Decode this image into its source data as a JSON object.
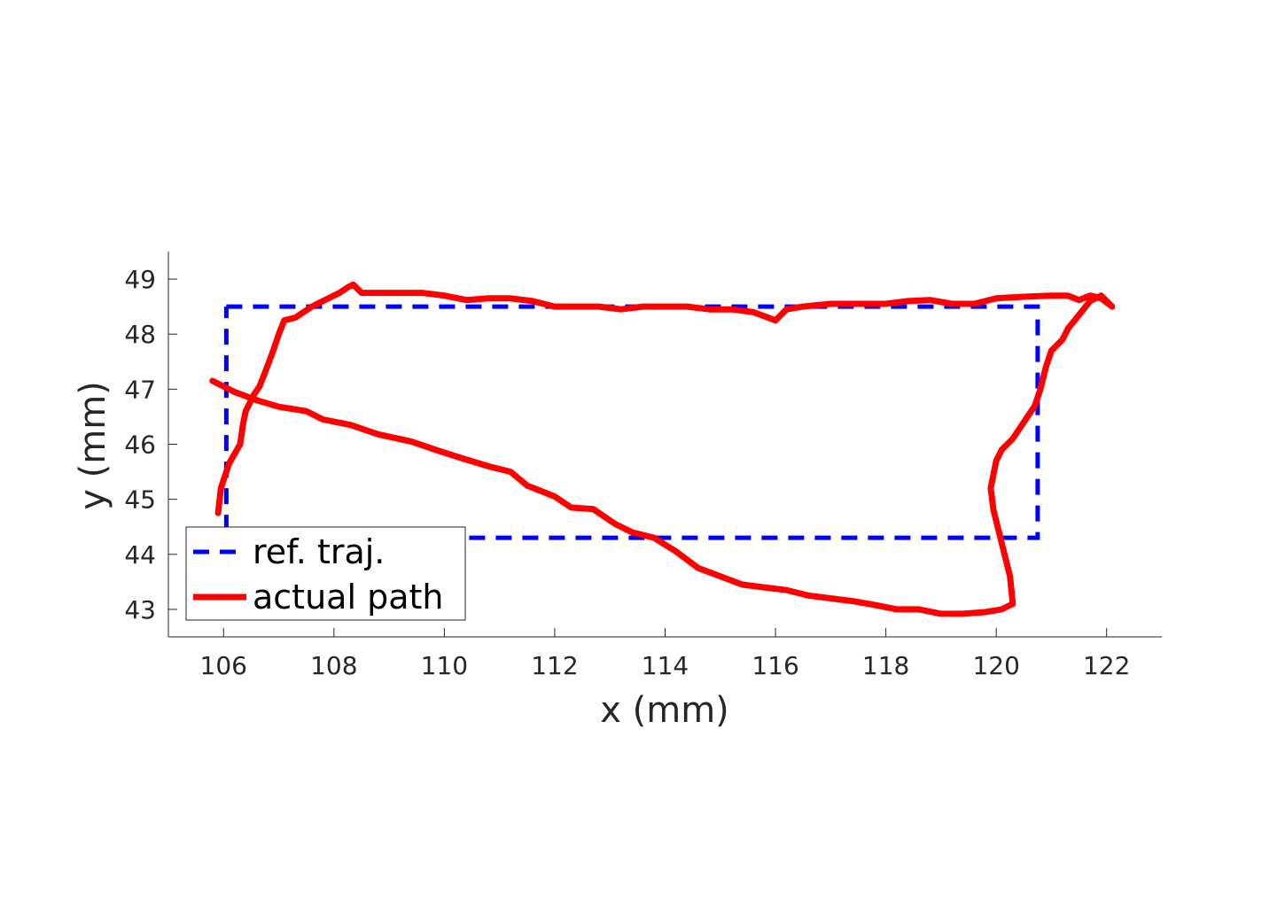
{
  "chart_data": {
    "type": "line",
    "title": "",
    "xlabel": "x (mm)",
    "ylabel": "y (mm)",
    "xlim": [
      105,
      123
    ],
    "ylim": [
      42.5,
      49.5
    ],
    "xticks": [
      106,
      108,
      110,
      112,
      114,
      116,
      118,
      120,
      122
    ],
    "yticks": [
      43,
      44,
      45,
      46,
      47,
      48,
      49
    ],
    "grid": false,
    "legend_position": "bottom-left",
    "colors": {
      "axis": "#262626",
      "reference": "#0000ff",
      "actual": "#ff0000"
    },
    "series": [
      {
        "name": "ref. traj.",
        "style": "dashed",
        "x": [
          106.05,
          120.75,
          120.75,
          106.05,
          106.05
        ],
        "y": [
          48.5,
          48.5,
          44.3,
          44.3,
          48.5
        ]
      },
      {
        "name": "actual path",
        "style": "solid",
        "x": [
          105.8,
          106.2,
          106.6,
          107.0,
          107.5,
          107.8,
          108.3,
          108.8,
          109.4,
          109.9,
          110.3,
          110.8,
          111.2,
          111.5,
          112.0,
          112.3,
          112.7,
          113.1,
          113.4,
          113.8,
          114.2,
          114.6,
          115.0,
          115.4,
          115.8,
          116.2,
          116.6,
          117.0,
          117.4,
          117.8,
          118.2,
          118.6,
          119.0,
          119.4,
          119.8,
          120.1,
          120.3,
          120.25,
          120.15,
          120.05,
          119.95,
          119.9,
          120.0,
          120.1,
          120.3,
          120.5,
          120.7,
          120.8,
          120.9,
          121.0,
          121.2,
          121.3,
          121.5,
          121.7,
          121.9,
          122.1,
          121.9,
          121.7,
          121.5,
          121.3,
          121.0,
          120.5,
          120.0,
          119.6,
          119.2,
          118.8,
          118.4,
          118.0,
          117.5,
          117.0,
          116.5,
          116.2,
          116.0,
          115.6,
          115.2,
          114.8,
          114.4,
          114.0,
          113.6,
          113.2,
          112.8,
          112.4,
          112.0,
          111.6,
          111.2,
          110.8,
          110.4,
          110.0,
          109.6,
          109.2,
          108.8,
          108.5,
          108.35,
          108.25,
          108.1,
          107.9,
          107.6,
          107.3,
          107.1,
          107.0,
          106.9,
          106.75,
          106.65,
          106.55,
          106.4,
          106.35,
          106.3,
          106.1,
          105.95,
          105.9
        ],
        "y": [
          47.15,
          46.95,
          46.8,
          46.68,
          46.6,
          46.45,
          46.35,
          46.18,
          46.05,
          45.88,
          45.75,
          45.6,
          45.5,
          45.25,
          45.05,
          44.85,
          44.82,
          44.55,
          44.4,
          44.3,
          44.05,
          43.75,
          43.6,
          43.45,
          43.4,
          43.35,
          43.25,
          43.2,
          43.15,
          43.08,
          43.0,
          43.0,
          42.92,
          42.92,
          42.95,
          43.0,
          43.1,
          43.6,
          44.0,
          44.4,
          44.8,
          45.2,
          45.7,
          45.9,
          46.1,
          46.4,
          46.7,
          47.0,
          47.4,
          47.7,
          47.9,
          48.1,
          48.35,
          48.6,
          48.7,
          48.5,
          48.65,
          48.7,
          48.62,
          48.7,
          48.7,
          48.68,
          48.65,
          48.55,
          48.55,
          48.62,
          48.6,
          48.55,
          48.55,
          48.55,
          48.5,
          48.45,
          48.25,
          48.4,
          48.45,
          48.45,
          48.5,
          48.5,
          48.5,
          48.45,
          48.5,
          48.5,
          48.5,
          48.6,
          48.65,
          48.65,
          48.62,
          48.7,
          48.75,
          48.75,
          48.75,
          48.75,
          48.9,
          48.85,
          48.75,
          48.65,
          48.5,
          48.3,
          48.25,
          48.0,
          47.7,
          47.3,
          47.05,
          46.9,
          46.6,
          46.35,
          46.0,
          45.65,
          45.2,
          44.75
        ]
      }
    ]
  }
}
